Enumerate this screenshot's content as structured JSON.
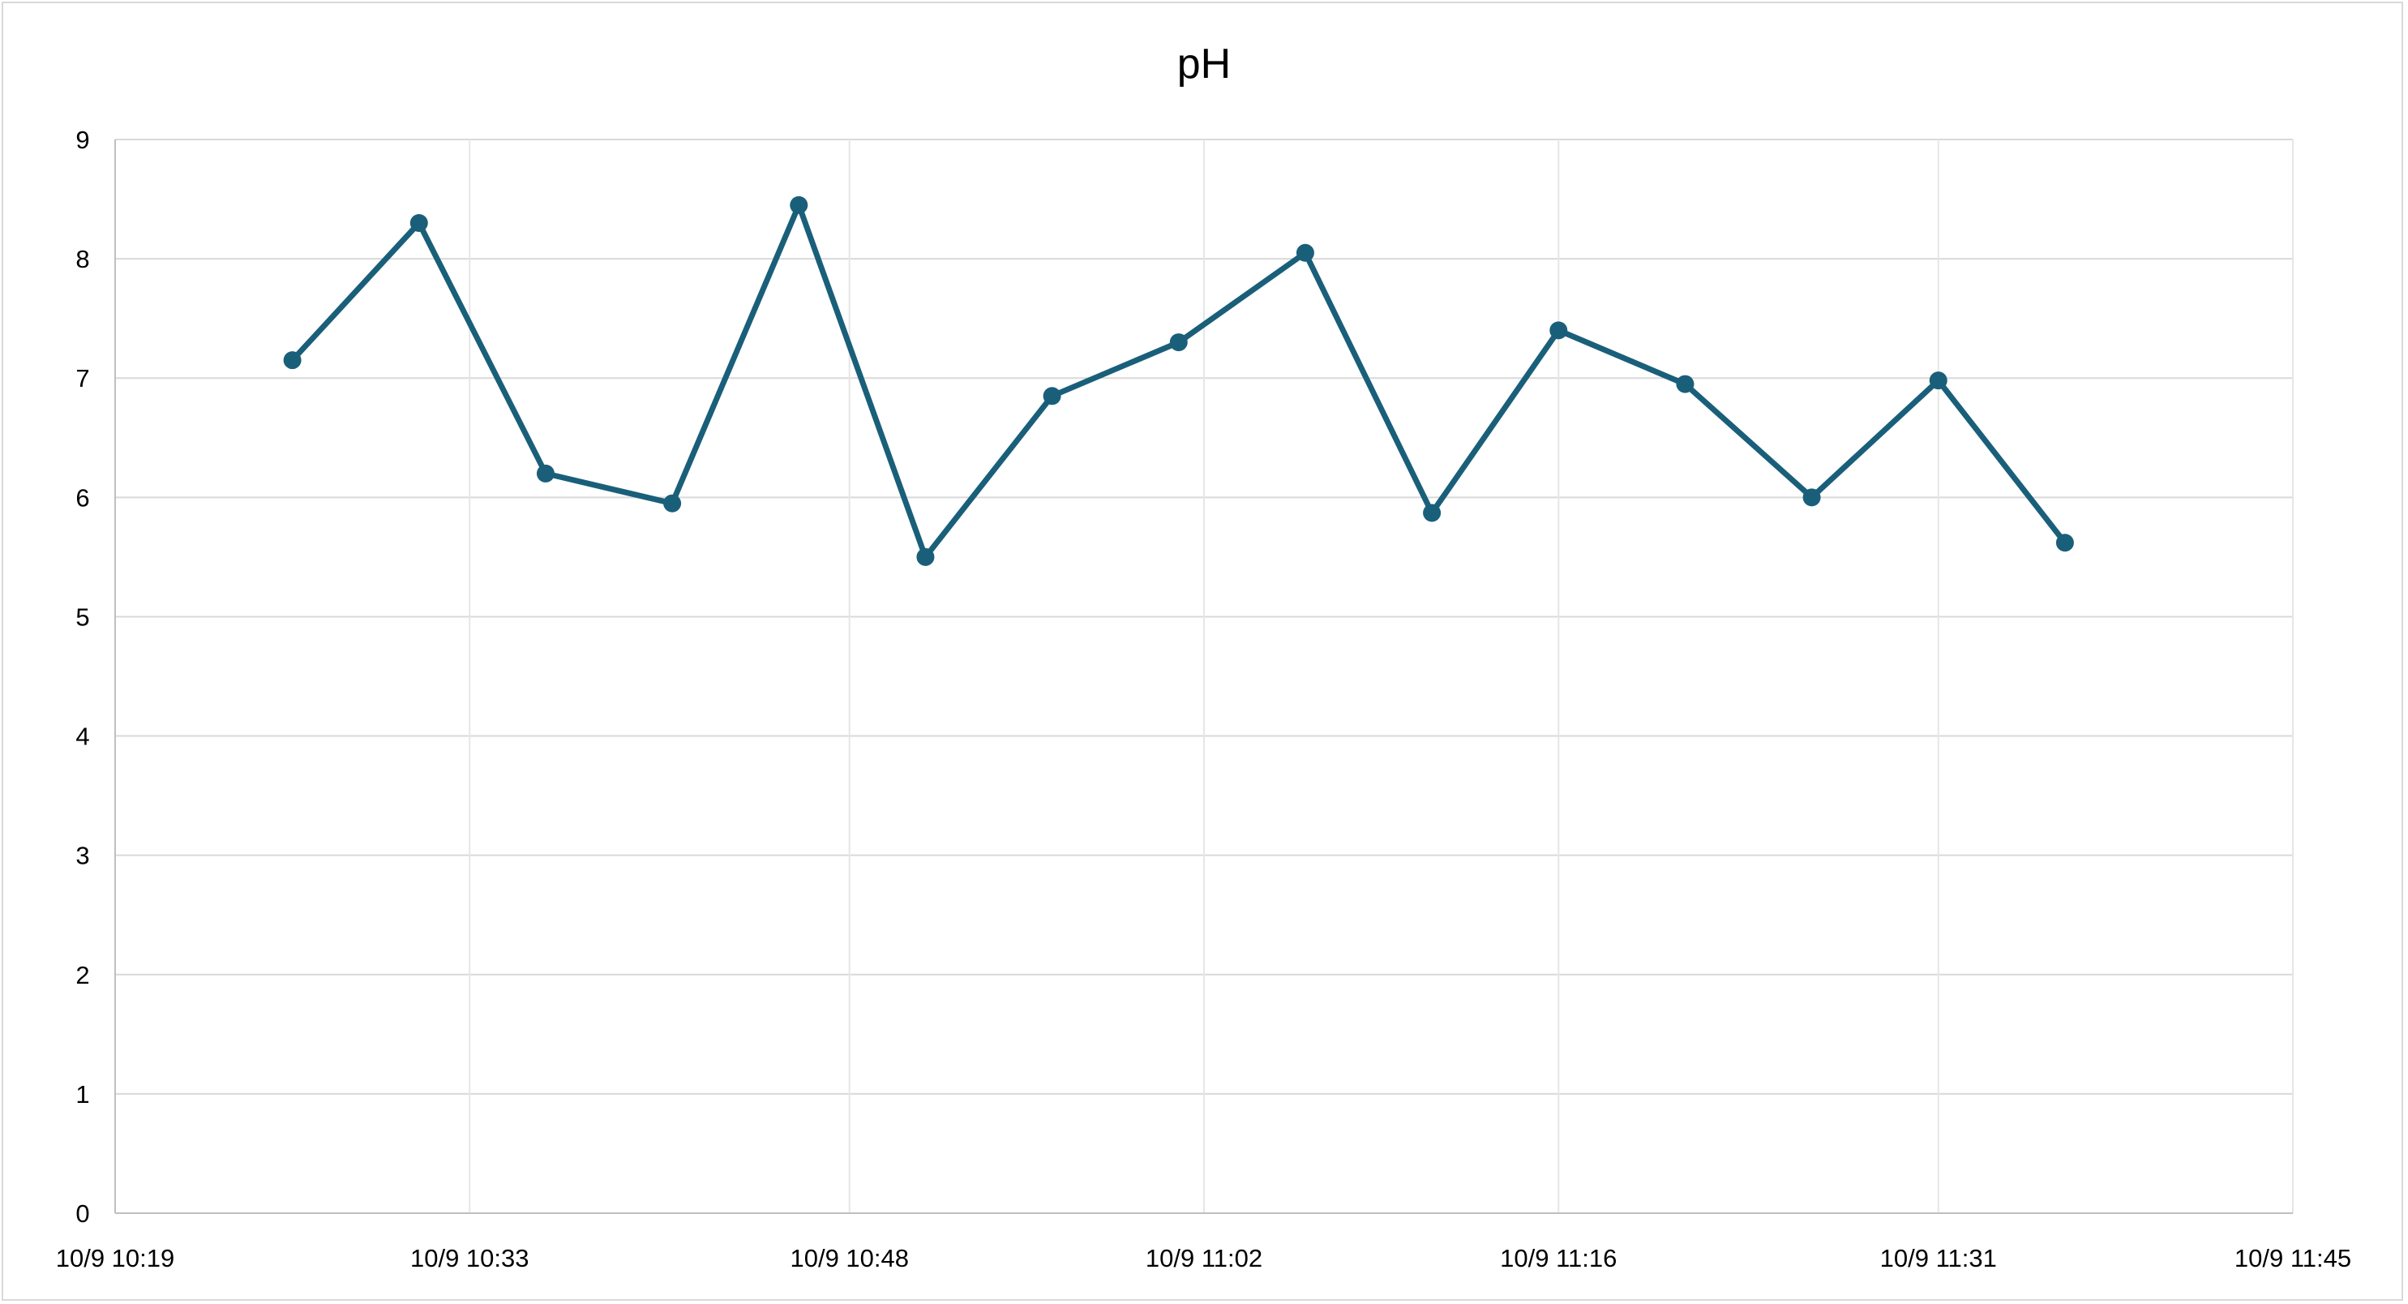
{
  "chart_data": {
    "type": "line",
    "title": "pH",
    "xlabel": "",
    "ylabel": "",
    "x_axis_kind": "datetime",
    "xlim": [
      "10/9 10:19",
      "10/9 11:45"
    ],
    "x_tick_labels": [
      "10/9 10:19",
      "10/9 10:33",
      "10/9 10:48",
      "10/9 11:02",
      "10/9 11:16",
      "10/9 11:31",
      "10/9 11:45"
    ],
    "ylim": [
      0,
      9
    ],
    "y_tick_labels": [
      "0",
      "1",
      "2",
      "3",
      "4",
      "5",
      "6",
      "7",
      "8",
      "9"
    ],
    "grid": true,
    "legend": "none",
    "series": [
      {
        "color": "#1a5f7a",
        "marker": "circle",
        "x": [
          "10/9 10:26",
          "10/9 10:31",
          "10/9 10:36",
          "10/9 10:41",
          "10/9 10:46",
          "10/9 10:51",
          "10/9 10:56",
          "10/9 11:01",
          "10/9 11:06",
          "10/9 11:11",
          "10/9 11:16",
          "10/9 11:21",
          "10/9 11:26",
          "10/9 11:31",
          "10/9 11:36"
        ],
        "values": [
          7.15,
          8.3,
          6.2,
          5.95,
          8.45,
          5.5,
          6.85,
          7.3,
          8.05,
          5.87,
          7.4,
          6.95,
          6.0,
          6.98,
          5.62
        ]
      }
    ]
  }
}
